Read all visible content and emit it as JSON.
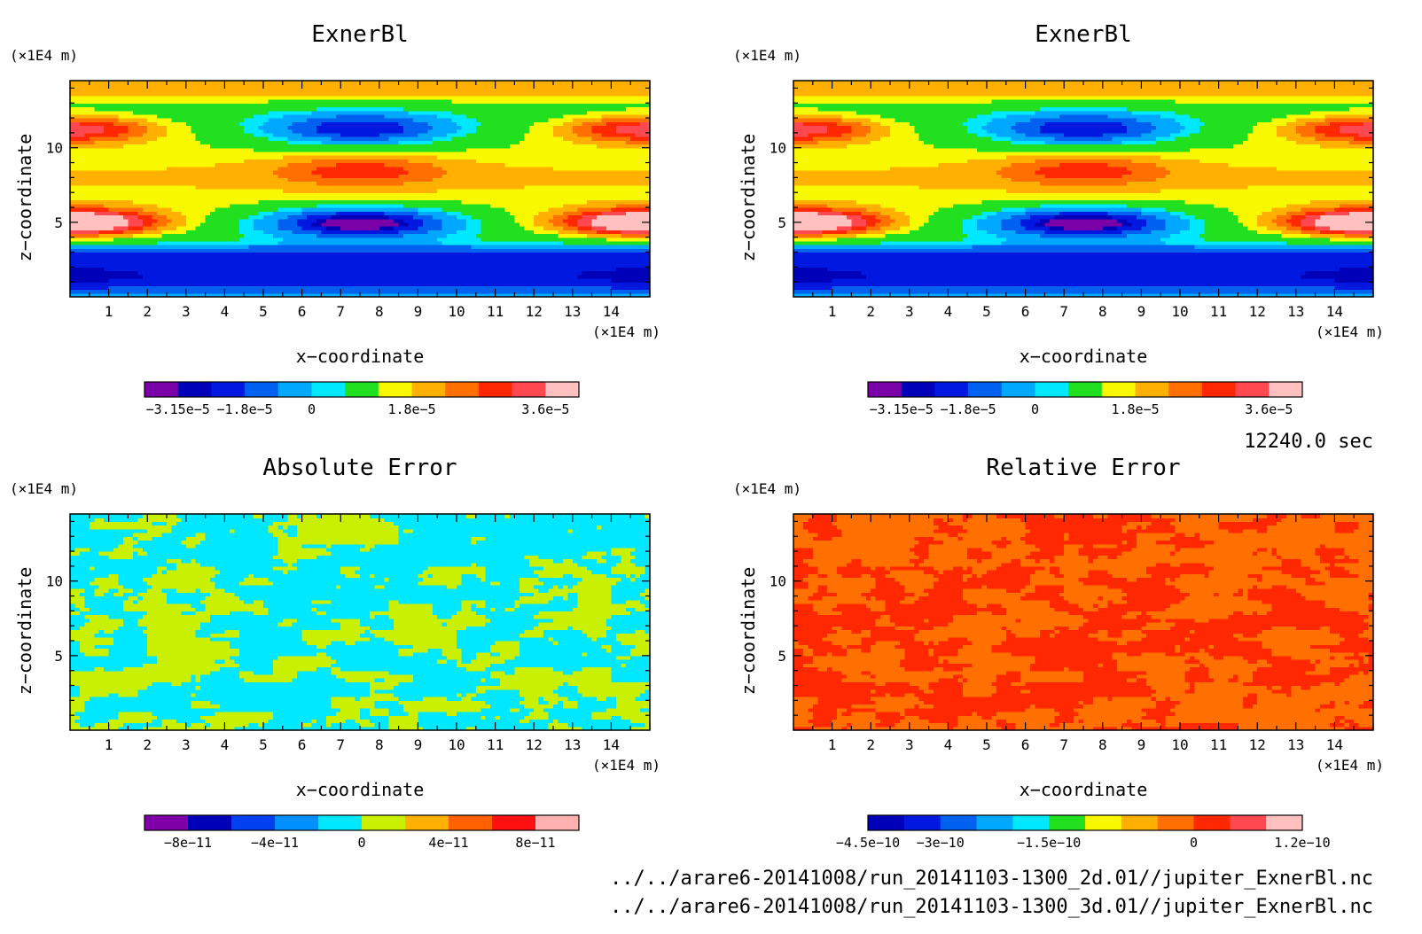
{
  "time_label": "12240.0 sec",
  "footer_lines": [
    "../../arare6-20141008/run_20141103-1300_2d.01//jupiter_ExnerBl.nc",
    "../../arare6-20141008/run_20141103-1300_3d.01//jupiter_ExnerBl.nc"
  ],
  "chart_data": [
    {
      "type": "heatmap",
      "title": "ExnerBl",
      "xlabel": "x−coordinate",
      "ylabel": "z−coordinate",
      "x_unit": "(×1E4 m)",
      "y_unit": "(×1E4 m)",
      "xlim": [
        0,
        15
      ],
      "ylim": [
        0,
        14.5
      ],
      "x_ticks": [
        1,
        2,
        3,
        4,
        5,
        6,
        7,
        8,
        9,
        10,
        11,
        12,
        13,
        14
      ],
      "y_ticks": [
        5,
        10
      ],
      "pattern": "exner",
      "colorbar": {
        "colors": [
          "#7a00a8",
          "#0000b8",
          "#0018e0",
          "#0060f0",
          "#00a8ff",
          "#00e8ff",
          "#20e020",
          "#f8f800",
          "#ffb000",
          "#ff7000",
          "#ff2800",
          "#ff4850",
          "#ffc0c0"
        ],
        "levels": [
          -3.6e-05,
          -3.15e-05,
          -2.7e-05,
          -1.8e-05,
          -9e-06,
          0,
          4.5e-06,
          1.35e-05,
          1.8e-05,
          2.25e-05,
          2.7e-05,
          3.15e-05,
          3.6e-05,
          3.7e-05
        ],
        "label_values": [
          -3.15e-05,
          -1.8e-05,
          0,
          1.8e-05,
          3.6e-05
        ],
        "tick_labels": [
          "−3.15e−5",
          "−1.8e−5",
          "0",
          "1.8e−5",
          "3.6e−5"
        ]
      }
    },
    {
      "type": "heatmap",
      "title": "ExnerBl",
      "xlabel": "x−coordinate",
      "ylabel": "z−coordinate",
      "x_unit": "(×1E4 m)",
      "y_unit": "(×1E4 m)",
      "xlim": [
        0,
        15
      ],
      "ylim": [
        0,
        14.5
      ],
      "x_ticks": [
        1,
        2,
        3,
        4,
        5,
        6,
        7,
        8,
        9,
        10,
        11,
        12,
        13,
        14
      ],
      "y_ticks": [
        5,
        10
      ],
      "pattern": "exner",
      "colorbar": {
        "colors": [
          "#7a00a8",
          "#0000b8",
          "#0018e0",
          "#0060f0",
          "#00a8ff",
          "#00e8ff",
          "#20e020",
          "#f8f800",
          "#ffb000",
          "#ff7000",
          "#ff2800",
          "#ff4850",
          "#ffc0c0"
        ],
        "levels": [
          -3.6e-05,
          -3.15e-05,
          -2.7e-05,
          -1.8e-05,
          -9e-06,
          0,
          4.5e-06,
          1.35e-05,
          1.8e-05,
          2.25e-05,
          2.7e-05,
          3.15e-05,
          3.6e-05,
          3.7e-05
        ],
        "label_values": [
          -3.15e-05,
          -1.8e-05,
          0,
          1.8e-05,
          3.6e-05
        ],
        "tick_labels": [
          "−3.15e−5",
          "−1.8e−5",
          "0",
          "1.8e−5",
          "3.6e−5"
        ]
      }
    },
    {
      "type": "heatmap",
      "title": "Absolute Error",
      "xlabel": "x−coordinate",
      "ylabel": "z−coordinate",
      "x_unit": "(×1E4 m)",
      "y_unit": "(×1E4 m)",
      "xlim": [
        0,
        15
      ],
      "ylim": [
        0,
        14.5
      ],
      "x_ticks": [
        1,
        2,
        3,
        4,
        5,
        6,
        7,
        8,
        9,
        10,
        11,
        12,
        13,
        14
      ],
      "y_ticks": [
        5,
        10
      ],
      "pattern": "noise",
      "noise_colors": [
        "#00e8ff",
        "#c8f000"
      ],
      "colorbar": {
        "colors": [
          "#8000a8",
          "#0000b8",
          "#0040f0",
          "#0090ff",
          "#00e8ff",
          "#c8f000",
          "#ffb000",
          "#ff6000",
          "#ff1010",
          "#ffb0b0"
        ],
        "levels": [
          -1e-10,
          -8e-11,
          -6e-11,
          -4e-11,
          -2e-11,
          0,
          2e-11,
          4e-11,
          6e-11,
          8e-11,
          1e-10
        ],
        "label_values": [
          -8e-11,
          -4e-11,
          0,
          4e-11,
          8e-11
        ],
        "tick_labels": [
          "−8e−11",
          "−4e−11",
          "0",
          "4e−11",
          "8e−11"
        ]
      }
    },
    {
      "type": "heatmap",
      "title": "Relative Error",
      "xlabel": "x−coordinate",
      "ylabel": "z−coordinate",
      "x_unit": "(×1E4 m)",
      "y_unit": "(×1E4 m)",
      "xlim": [
        0,
        15
      ],
      "ylim": [
        0,
        14.5
      ],
      "x_ticks": [
        1,
        2,
        3,
        4,
        5,
        6,
        7,
        8,
        9,
        10,
        11,
        12,
        13,
        14
      ],
      "y_ticks": [
        5,
        10
      ],
      "pattern": "noise",
      "noise_colors": [
        "#ff7000",
        "#ff2800"
      ],
      "colorbar": {
        "colors": [
          "#0000b8",
          "#0018e0",
          "#0060f0",
          "#00a8ff",
          "#00e8ff",
          "#20e020",
          "#f8f800",
          "#ffb000",
          "#ff7000",
          "#ff2800",
          "#ff4850",
          "#ffc0c0"
        ],
        "levels": [
          -4.5e-10,
          -3.75e-10,
          -3e-10,
          -2.5e-10,
          -2e-10,
          -1.5e-10,
          -1.2e-10,
          -8e-11,
          -4e-11,
          0,
          4e-11,
          8e-11,
          1.2e-10
        ],
        "label_values": [
          -4.5e-10,
          -3e-10,
          -1.5e-10,
          0,
          1.2e-10
        ],
        "tick_labels": [
          "−4.5e−10",
          "−3e−10",
          "−1.5e−10",
          "0",
          "1.2e−10"
        ]
      }
    }
  ]
}
